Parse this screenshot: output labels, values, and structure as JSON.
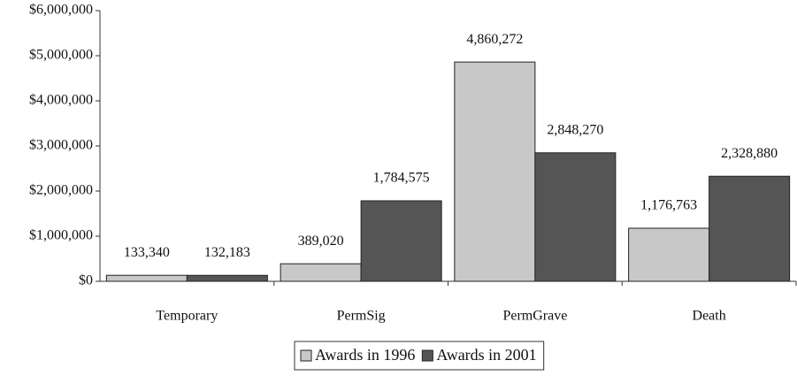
{
  "chart_data": {
    "type": "bar",
    "categories": [
      "Temporary",
      "PermSig",
      "PermGrave",
      "Death"
    ],
    "series": [
      {
        "name": "Awards in 1996",
        "color": "#c8c8c8",
        "values": [
          133340,
          389020,
          4860272,
          1176763
        ],
        "value_labels": [
          "133,340",
          "389,020",
          "4,860,272",
          "1,176,763"
        ]
      },
      {
        "name": "Awards in 2001",
        "color": "#555555",
        "values": [
          132183,
          1784575,
          2848270,
          2328880
        ],
        "value_labels": [
          "132,183",
          "1,784,575",
          "2,848,270",
          "2,328,880"
        ]
      }
    ],
    "ylim": [
      0,
      6000000
    ],
    "yticks": [
      {
        "value": 0,
        "label": "$0"
      },
      {
        "value": 1000000,
        "label": "$1,000,000"
      },
      {
        "value": 2000000,
        "label": "$2,000,000"
      },
      {
        "value": 3000000,
        "label": "$3,000,000"
      },
      {
        "value": 4000000,
        "label": "$4,000,000"
      },
      {
        "value": 5000000,
        "label": "$5,000,000"
      },
      {
        "value": 6000000,
        "label": "$6,000,000"
      }
    ],
    "grid": false,
    "legend": "bottom"
  }
}
